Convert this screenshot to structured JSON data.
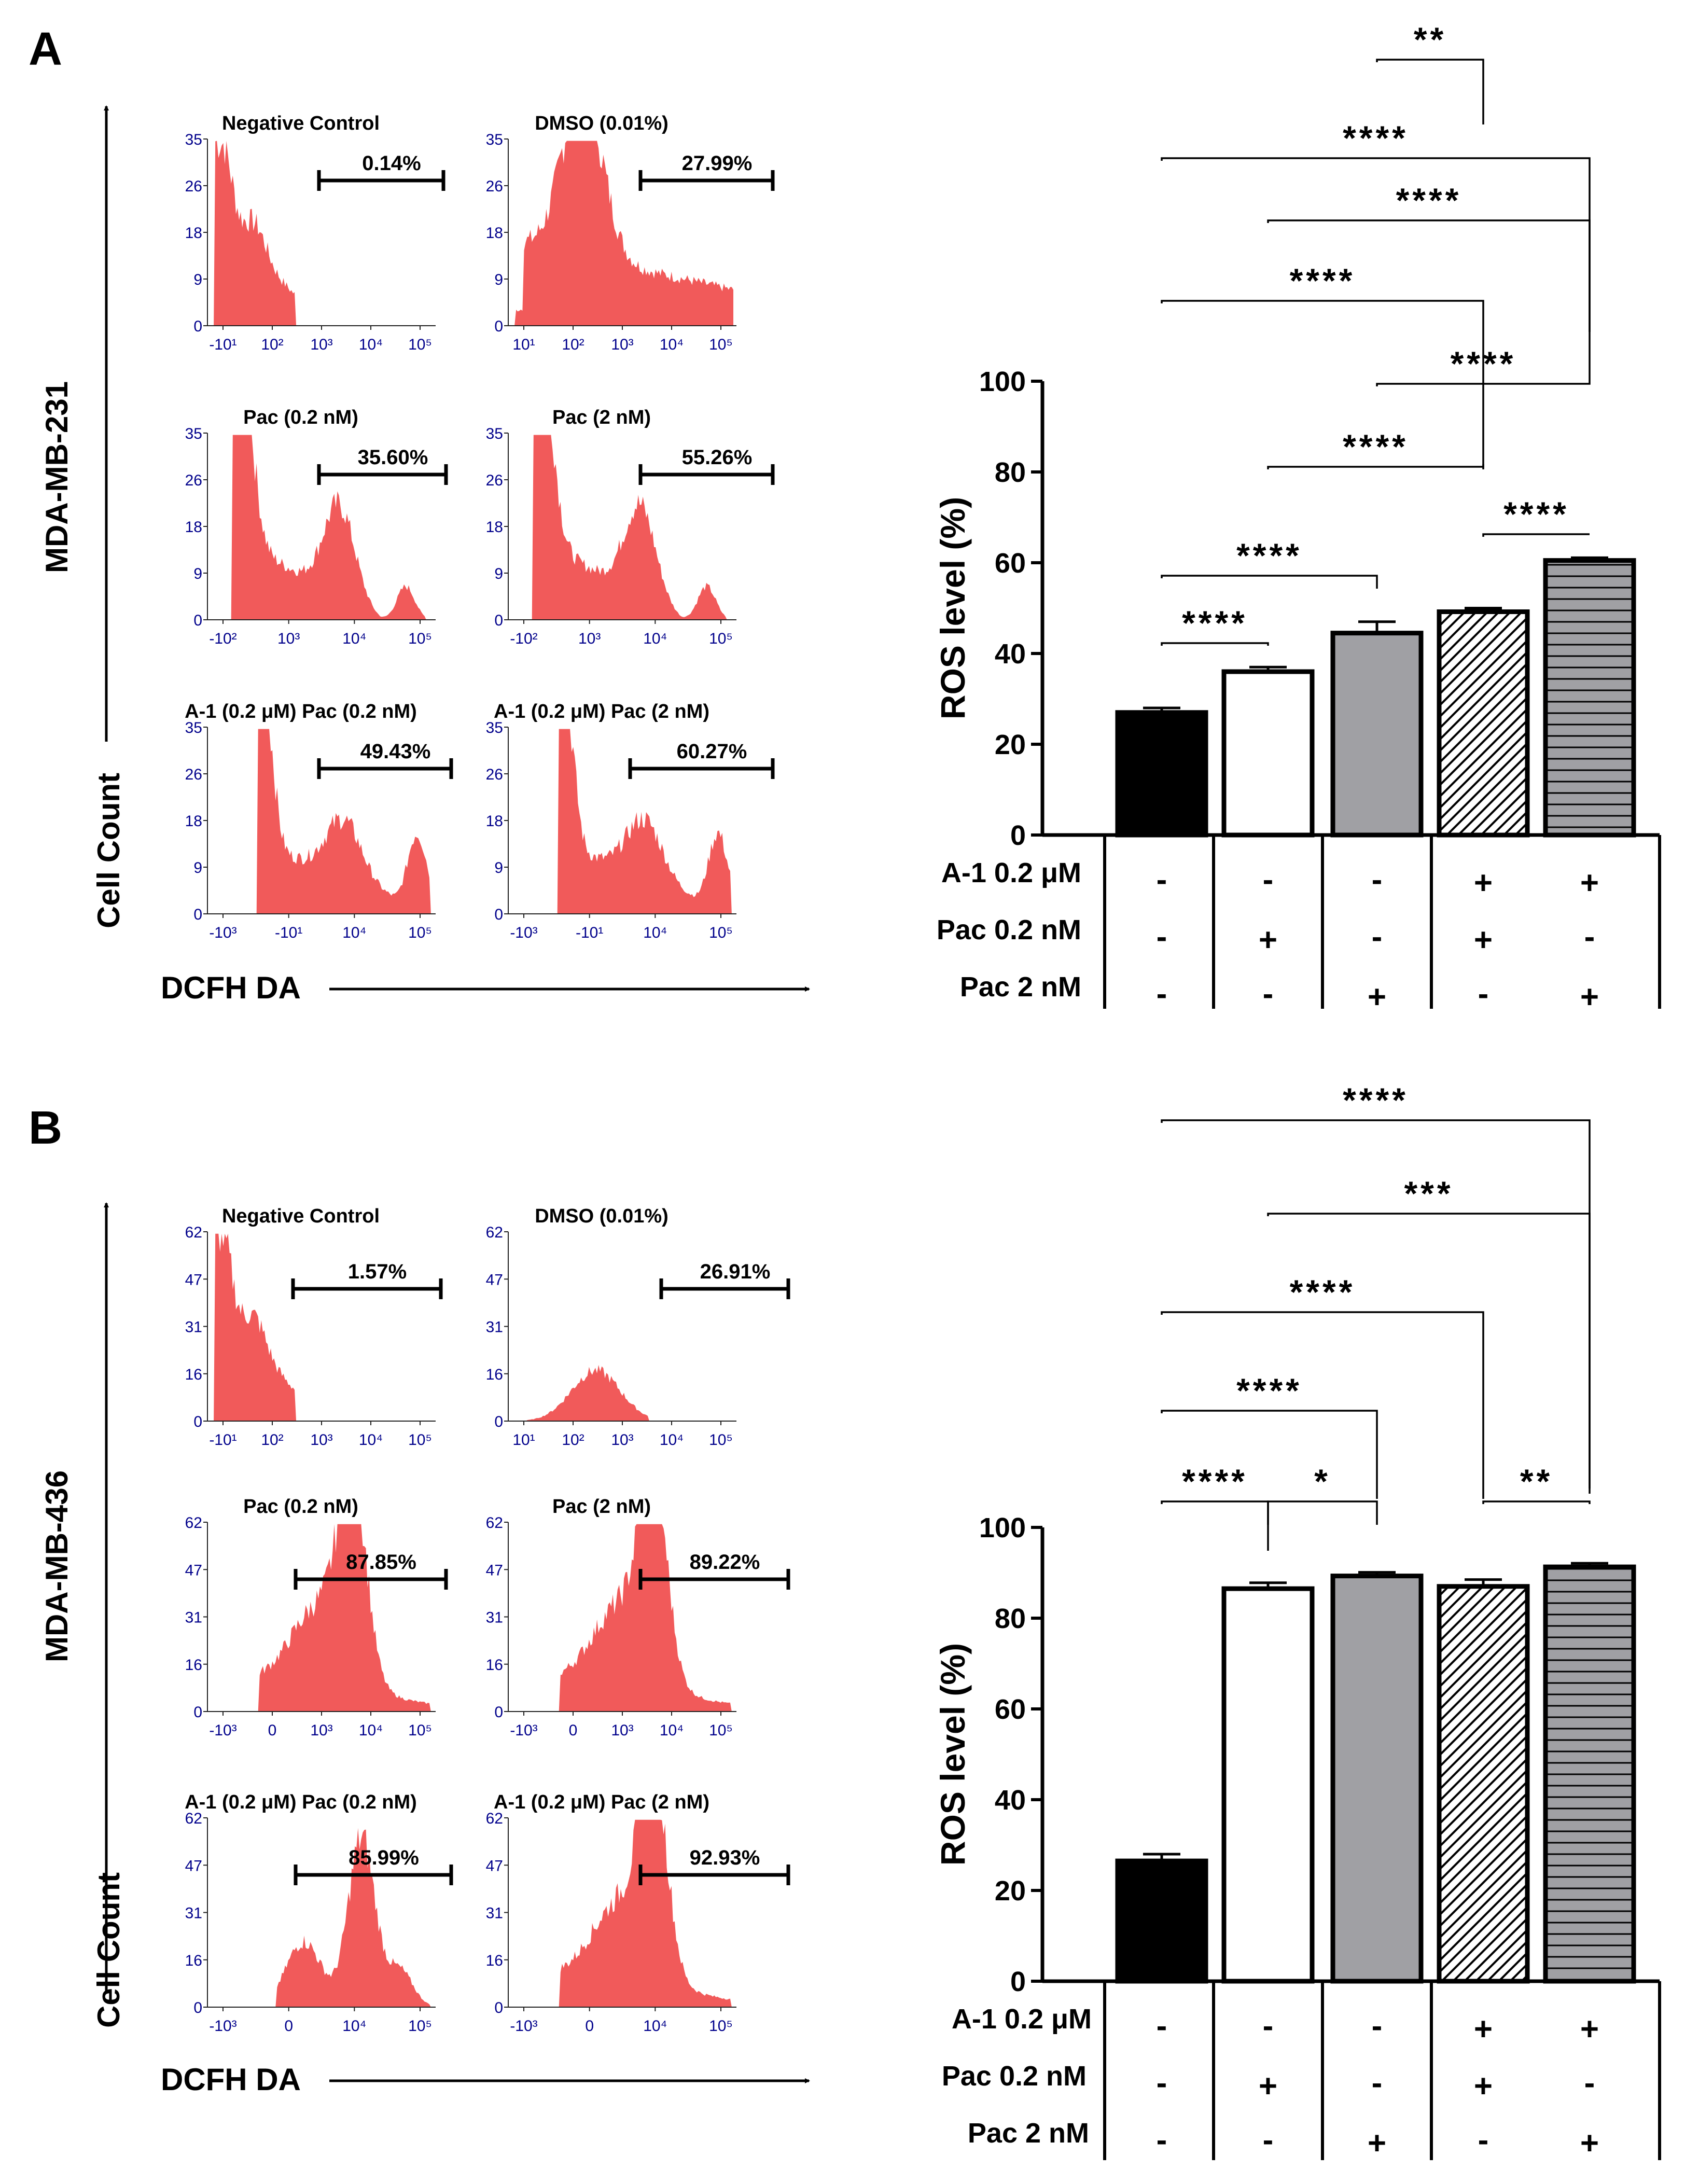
{
  "chart_data": [
    {
      "type": "histogram",
      "panel_label": "A",
      "cell_line": "MDA-MB-231",
      "y_axis_label": "Cell Count",
      "x_axis_label": "DCFH DA",
      "y_ticks": [
        "0",
        "9",
        "18",
        "26",
        "35"
      ],
      "histograms": [
        {
          "title": "Negative Control",
          "percent": "0.14%",
          "x_ticks": [
            "-10¹",
            "10²",
            "10³",
            "10⁴",
            "10⁵"
          ],
          "profile": "neg"
        },
        {
          "title": "DMSO (0.01%)",
          "percent": "27.99%",
          "x_ticks": [
            "10¹",
            "10²",
            "10³",
            "10⁴",
            "10⁵"
          ],
          "profile": "dmso"
        },
        {
          "title": "Pac (0.2 nM)",
          "percent": "35.60%",
          "x_ticks": [
            "-10²",
            "10³",
            "10⁴",
            "10⁵"
          ],
          "profile": "treatA"
        },
        {
          "title": "Pac (2 nM)",
          "percent": "55.26%",
          "x_ticks": [
            "-10²",
            "10³",
            "10⁴",
            "10⁵"
          ],
          "profile": "treatA"
        },
        {
          "title": "A-1 (0.2 μM) Pac (0.2 nM)",
          "percent": "49.43%",
          "x_ticks": [
            "-10³",
            "-10¹",
            "10⁴",
            "10⁵"
          ],
          "profile": "combA"
        },
        {
          "title": "A-1 (0.2 μM) Pac (2 nM)",
          "percent": "60.27%",
          "x_ticks": [
            "-10³",
            "-10¹",
            "10⁴",
            "10⁵"
          ],
          "profile": "combA"
        }
      ]
    },
    {
      "type": "bar",
      "panel_label": "A",
      "ylabel": "ROS level (%)",
      "ylim": [
        0,
        100
      ],
      "y_ticks": [
        "0",
        "20",
        "40",
        "60",
        "80",
        "100"
      ],
      "values": [
        27,
        36,
        44.5,
        49.2,
        60.5
      ],
      "errors": [
        1.0,
        1.0,
        2.5,
        0.8,
        0.6
      ],
      "fills": [
        "black",
        "white",
        "gray",
        "diagonal",
        "horizontal"
      ],
      "table_rows": [
        {
          "label": "A-1 0.2 μM",
          "cells": [
            "-",
            "-",
            "-",
            "+",
            "+"
          ]
        },
        {
          "label": "Pac 0.2 nM",
          "cells": [
            "-",
            "+",
            "-",
            "+",
            "-"
          ]
        },
        {
          "label": "Pac 2 nM",
          "cells": [
            "-",
            "-",
            "+",
            "-",
            "+"
          ]
        }
      ],
      "significance": [
        {
          "from": 0,
          "to": 1,
          "label": "****"
        },
        {
          "from": 0,
          "to": 2,
          "label": "****"
        },
        {
          "from": 3,
          "to": 4,
          "label": "****"
        },
        {
          "from": 1,
          "to": 3,
          "label": "****"
        },
        {
          "from": 2,
          "to": 4,
          "label": "****"
        },
        {
          "from": 0,
          "to": 3,
          "label": "****"
        },
        {
          "from": 1,
          "to": 4,
          "label": "****"
        },
        {
          "from": 0,
          "to": 4,
          "label": "****"
        },
        {
          "from": 2,
          "to": 3,
          "label": "**"
        }
      ]
    },
    {
      "type": "histogram",
      "panel_label": "B",
      "cell_line": "MDA-MB-436",
      "y_axis_label": "Cell Count",
      "x_axis_label": "DCFH DA",
      "y_ticks": [
        "0",
        "16",
        "31",
        "47",
        "62"
      ],
      "histograms": [
        {
          "title": "Negative Control",
          "percent": "1.57%",
          "x_ticks": [
            "-10¹",
            "10²",
            "10³",
            "10⁴",
            "10⁵"
          ],
          "profile": "neg"
        },
        {
          "title": "DMSO (0.01%)",
          "percent": "26.91%",
          "x_ticks": [
            "10¹",
            "10²",
            "10³",
            "10⁴",
            "10⁵"
          ],
          "profile": "dmsoB"
        },
        {
          "title": "Pac (0.2 nM)",
          "percent": "87.85%",
          "x_ticks": [
            "-10³",
            "0",
            "10³",
            "10⁴",
            "10⁵"
          ],
          "profile": "peakB"
        },
        {
          "title": "Pac (2 nM)",
          "percent": "89.22%",
          "x_ticks": [
            "-10³",
            "0",
            "10³",
            "10⁴",
            "10⁵"
          ],
          "profile": "peakB"
        },
        {
          "title": "A-1 (0.2 μM) Pac (0.2 nM)",
          "percent": "85.99%",
          "x_ticks": [
            "-10³",
            "0",
            "10⁴",
            "10⁵"
          ],
          "profile": "peakB2"
        },
        {
          "title": "A-1 (0.2 μM) Pac (2 nM)",
          "percent": "92.93%",
          "x_ticks": [
            "-10³",
            "0",
            "10⁴",
            "10⁵"
          ],
          "profile": "peakB"
        }
      ]
    },
    {
      "type": "bar",
      "panel_label": "B",
      "ylabel": "ROS level (%)",
      "ylim": [
        0,
        100
      ],
      "y_ticks": [
        "0",
        "20",
        "40",
        "60",
        "80",
        "100"
      ],
      "values": [
        26.5,
        86.5,
        89.3,
        87,
        91.3
      ],
      "errors": [
        1.5,
        1.3,
        0.8,
        1.5,
        0.8
      ],
      "fills": [
        "black",
        "white",
        "gray",
        "diagonal",
        "horizontal"
      ],
      "table_rows": [
        {
          "label": "A-1 0.2 μM",
          "cells": [
            "-",
            "-",
            "-",
            "+",
            "+"
          ]
        },
        {
          "label": "Pac 0.2 nM",
          "cells": [
            "-",
            "+",
            "-",
            "+",
            "-"
          ]
        },
        {
          "label": "Pac 2 nM",
          "cells": [
            "-",
            "-",
            "+",
            "-",
            "+"
          ]
        }
      ],
      "significance": [
        {
          "from": 0,
          "to": 1,
          "label": "****"
        },
        {
          "from": 1,
          "to": 2,
          "label": "*"
        },
        {
          "from": 3,
          "to": 4,
          "label": "**"
        },
        {
          "from": 0,
          "to": 2,
          "label": "****"
        },
        {
          "from": 0,
          "to": 3,
          "label": "****"
        },
        {
          "from": 1,
          "to": 4,
          "label": "***"
        },
        {
          "from": 0,
          "to": 4,
          "label": "****"
        }
      ]
    }
  ]
}
